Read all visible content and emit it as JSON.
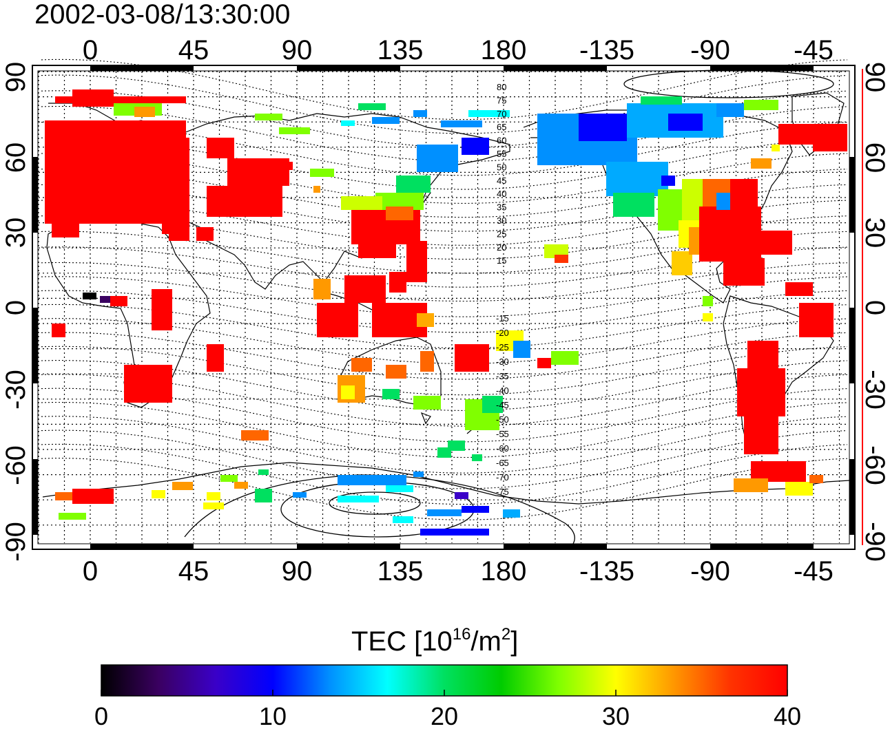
{
  "title": "2002-03-08/13:30:00",
  "top_lon_labels": [
    "0",
    "45",
    "90",
    "135",
    "180",
    "-135",
    "-90",
    "-45"
  ],
  "bottom_lon_labels": [
    "0",
    "45",
    "90",
    "135",
    "180",
    "-135",
    "-90",
    "-45"
  ],
  "left_lat_labels": [
    "90",
    "60",
    "30",
    "0",
    "-30",
    "-60",
    "-90"
  ],
  "right_lat_labels": [
    "90",
    "60",
    "30",
    "0",
    "-30",
    "-60",
    "-90"
  ],
  "magnetic_latitude_labels_north": [
    "80",
    "75",
    "70",
    "65",
    "60",
    "55",
    "50",
    "45",
    "40",
    "35",
    "30",
    "25",
    "20",
    "15"
  ],
  "magnetic_latitude_labels_south": [
    "-15",
    "-20",
    "-25",
    "-30",
    "-35",
    "-40",
    "-45",
    "-50",
    "-55",
    "-60",
    "-65",
    "-70",
    "-75"
  ],
  "colorbar": {
    "title_main": "TEC  [10",
    "title_sup1": "16",
    "title_mid": "/m",
    "title_sup2": "2",
    "title_end": "]",
    "ticks": [
      "0",
      "10",
      "20",
      "30",
      "40"
    ],
    "min": 0,
    "max": 40,
    "colors": [
      "#000000",
      "#3a0060",
      "#3a00c8",
      "#0000ff",
      "#0090ff",
      "#00ffff",
      "#00e060",
      "#00cc00",
      "#80ff00",
      "#ffff00",
      "#ff9900",
      "#ff3300",
      "#ff0000"
    ]
  },
  "colors": {
    "ocean": "#ffffff",
    "coast": "#000000",
    "grid": "#000000",
    "right_axis_marker": "#ff0000"
  }
}
